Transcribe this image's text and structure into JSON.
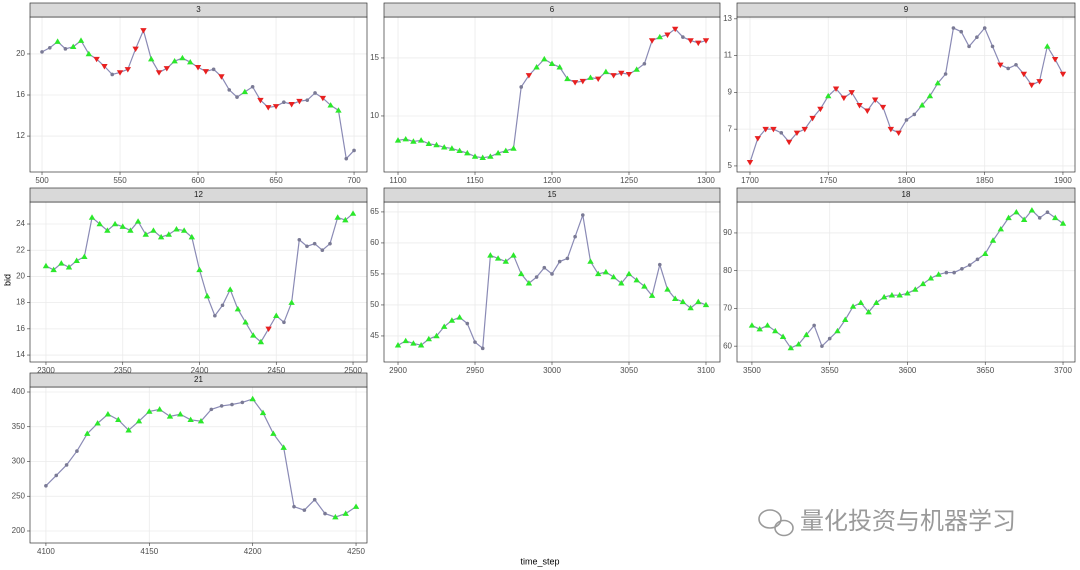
{
  "x_label": "time_step",
  "y_label": "bid",
  "watermark": "量化投资与机器学习",
  "line_color": "#8a8ab5",
  "signal_styles": {
    "u": {
      "color": "#2be82b",
      "shape": "triangle-up"
    },
    "d": {
      "color": "#e82020",
      "shape": "triangle-down"
    },
    "n": {
      "color": "#7a7a95",
      "shape": "point"
    }
  },
  "chart_data": [
    {
      "type": "line",
      "title": "3",
      "grid": true,
      "x": [
        500,
        505,
        510,
        515,
        520,
        525,
        530,
        535,
        540,
        545,
        550,
        555,
        560,
        565,
        570,
        575,
        580,
        585,
        590,
        595,
        600,
        605,
        610,
        615,
        620,
        625,
        630,
        635,
        640,
        645,
        650,
        655,
        660,
        665,
        670,
        675,
        680,
        685,
        690,
        695,
        700
      ],
      "series": [
        {
          "values": [
            20.2,
            20.6,
            21.2,
            20.5,
            20.7,
            21.3,
            20.0,
            19.5,
            18.8,
            18.0,
            18.2,
            18.5,
            20.5,
            22.3,
            19.5,
            18.2,
            18.6,
            19.3,
            19.6,
            19.2,
            18.7,
            18.3,
            18.5,
            17.8,
            16.5,
            15.8,
            16.3,
            16.8,
            15.5,
            14.8,
            14.9,
            15.3,
            15.1,
            15.4,
            15.5,
            16.2,
            15.7,
            15.0,
            14.5,
            9.8,
            10.6
          ]
        }
      ],
      "signals": [
        "n",
        "n",
        "u",
        "n",
        "u",
        "u",
        "u",
        "d",
        "d",
        "n",
        "d",
        "d",
        "d",
        "d",
        "u",
        "d",
        "d",
        "u",
        "u",
        "u",
        "d",
        "d",
        "n",
        "d",
        "n",
        "n",
        "u",
        "n",
        "d",
        "d",
        "d",
        "n",
        "d",
        "d",
        "n",
        "n",
        "d",
        "u",
        "u",
        "n",
        "n"
      ],
      "xlim": [
        492.3,
        708.3
      ],
      "xticks": [
        500,
        550,
        600,
        650,
        700
      ],
      "ylim": [
        8.5,
        23.6
      ],
      "yticks": [
        12,
        16,
        20
      ]
    },
    {
      "type": "line",
      "title": "6",
      "grid": true,
      "x": [
        1100,
        1105,
        1110,
        1115,
        1120,
        1125,
        1130,
        1135,
        1140,
        1145,
        1150,
        1155,
        1160,
        1165,
        1170,
        1175,
        1180,
        1185,
        1190,
        1195,
        1200,
        1205,
        1210,
        1215,
        1220,
        1225,
        1230,
        1235,
        1240,
        1245,
        1250,
        1255,
        1260,
        1265,
        1270,
        1275,
        1280,
        1285,
        1290,
        1295,
        1300
      ],
      "series": [
        {
          "values": [
            7.9,
            8.0,
            7.8,
            7.9,
            7.6,
            7.5,
            7.3,
            7.2,
            7.0,
            6.8,
            6.5,
            6.4,
            6.5,
            6.8,
            7.0,
            7.2,
            12.5,
            13.5,
            14.2,
            14.9,
            14.5,
            14.2,
            13.2,
            12.9,
            13.0,
            13.3,
            13.2,
            13.8,
            13.5,
            13.7,
            13.6,
            14.0,
            14.5,
            16.5,
            16.8,
            17.0,
            17.5,
            16.8,
            16.5,
            16.3,
            16.5
          ]
        }
      ],
      "signals": [
        "u",
        "u",
        "u",
        "u",
        "u",
        "u",
        "u",
        "u",
        "u",
        "u",
        "u",
        "u",
        "u",
        "u",
        "u",
        "u",
        "n",
        "d",
        "u",
        "u",
        "u",
        "u",
        "u",
        "d",
        "d",
        "u",
        "d",
        "u",
        "d",
        "d",
        "d",
        "u",
        "n",
        "d",
        "u",
        "d",
        "d",
        "n",
        "d",
        "d",
        "d"
      ],
      "xlim": [
        1090.9,
        1309.1
      ],
      "xticks": [
        1100,
        1150,
        1200,
        1250,
        1300
      ],
      "ylim": [
        5.17,
        18.53
      ],
      "yticks": [
        10,
        15
      ]
    },
    {
      "type": "line",
      "title": "9",
      "grid": true,
      "x": [
        1700,
        1705,
        1710,
        1715,
        1720,
        1725,
        1730,
        1735,
        1740,
        1745,
        1750,
        1755,
        1760,
        1765,
        1770,
        1775,
        1780,
        1785,
        1790,
        1795,
        1800,
        1805,
        1810,
        1815,
        1820,
        1825,
        1830,
        1835,
        1840,
        1845,
        1850,
        1855,
        1860,
        1865,
        1870,
        1875,
        1880,
        1885,
        1890,
        1895,
        1900
      ],
      "series": [
        {
          "values": [
            5.2,
            6.5,
            7.0,
            7.0,
            6.8,
            6.3,
            6.8,
            7.0,
            7.6,
            8.1,
            8.8,
            9.2,
            8.7,
            9.0,
            8.3,
            8.0,
            8.6,
            8.2,
            7.0,
            6.8,
            7.5,
            7.8,
            8.3,
            8.8,
            9.5,
            10.0,
            12.5,
            12.3,
            11.5,
            12.0,
            12.5,
            11.5,
            10.5,
            10.3,
            10.5,
            10.0,
            9.4,
            9.6,
            11.5,
            10.8,
            10.0
          ]
        }
      ],
      "signals": [
        "d",
        "d",
        "d",
        "d",
        "n",
        "d",
        "d",
        "d",
        "d",
        "d",
        "u",
        "d",
        "d",
        "d",
        "d",
        "d",
        "d",
        "d",
        "d",
        "d",
        "n",
        "n",
        "u",
        "u",
        "u",
        "n",
        "n",
        "n",
        "n",
        "n",
        "n",
        "n",
        "d",
        "n",
        "n",
        "d",
        "d",
        "d",
        "u",
        "d",
        "d"
      ],
      "xlim": [
        1691.7,
        1907.7
      ],
      "xticks": [
        1700,
        1750,
        1800,
        1850,
        1900
      ],
      "ylim": [
        4.67,
        13.1
      ],
      "yticks": [
        5,
        7,
        9,
        11,
        13
      ]
    },
    {
      "type": "line",
      "title": "12",
      "grid": true,
      "x": [
        2300,
        2305,
        2310,
        2315,
        2320,
        2325,
        2330,
        2335,
        2340,
        2345,
        2350,
        2355,
        2360,
        2365,
        2370,
        2375,
        2380,
        2385,
        2390,
        2395,
        2400,
        2405,
        2410,
        2415,
        2420,
        2425,
        2430,
        2435,
        2440,
        2445,
        2450,
        2455,
        2460,
        2465,
        2470,
        2475,
        2480,
        2485,
        2490,
        2495,
        2500
      ],
      "series": [
        {
          "values": [
            20.8,
            20.5,
            21.0,
            20.7,
            21.2,
            21.5,
            24.5,
            24.0,
            23.5,
            24.0,
            23.8,
            23.5,
            24.2,
            23.2,
            23.5,
            23.0,
            23.2,
            23.6,
            23.5,
            23.0,
            20.5,
            18.5,
            17.0,
            17.8,
            19.0,
            17.5,
            16.5,
            15.5,
            15.0,
            16.0,
            17.0,
            16.5,
            18.0,
            22.8,
            22.3,
            22.5,
            22.0,
            22.5,
            24.5,
            24.3,
            24.8
          ]
        }
      ],
      "signals": [
        "u",
        "u",
        "u",
        "u",
        "u",
        "u",
        "u",
        "u",
        "u",
        "u",
        "u",
        "u",
        "u",
        "u",
        "u",
        "u",
        "u",
        "u",
        "u",
        "u",
        "u",
        "u",
        "n",
        "n",
        "u",
        "u",
        "u",
        "u",
        "u",
        "d",
        "u",
        "n",
        "u",
        "n",
        "n",
        "n",
        "n",
        "n",
        "u",
        "u",
        "u"
      ],
      "xlim": [
        2289.6,
        2509.1
      ],
      "xticks": [
        2300,
        2350,
        2400,
        2450,
        2500
      ],
      "ylim": [
        13.47,
        25.68
      ],
      "yticks": [
        14,
        16,
        18,
        20,
        22,
        24
      ]
    },
    {
      "type": "line",
      "title": "15",
      "grid": true,
      "x": [
        2900,
        2905,
        2910,
        2915,
        2920,
        2925,
        2930,
        2935,
        2940,
        2945,
        2950,
        2955,
        2960,
        2965,
        2970,
        2975,
        2980,
        2985,
        2990,
        2995,
        3000,
        3005,
        3010,
        3015,
        3020,
        3025,
        3030,
        3035,
        3040,
        3045,
        3050,
        3055,
        3060,
        3065,
        3070,
        3075,
        3080,
        3085,
        3090,
        3095,
        3100
      ],
      "series": [
        {
          "values": [
            43.5,
            44.2,
            43.8,
            43.5,
            44.5,
            45.0,
            46.5,
            47.5,
            48.0,
            47.0,
            44.0,
            43.0,
            58.0,
            57.5,
            57.0,
            58.0,
            55.0,
            53.5,
            54.5,
            56.0,
            55.0,
            57.0,
            57.5,
            61.0,
            64.5,
            57.0,
            55.0,
            55.3,
            54.5,
            53.5,
            55.0,
            54.0,
            53.0,
            51.5,
            56.5,
            52.5,
            51.0,
            50.5,
            49.5,
            50.5,
            50.0
          ]
        }
      ],
      "signals": [
        "u",
        "u",
        "u",
        "u",
        "u",
        "u",
        "u",
        "u",
        "u",
        "n",
        "n",
        "n",
        "u",
        "u",
        "u",
        "u",
        "u",
        "u",
        "n",
        "n",
        "n",
        "n",
        "n",
        "n",
        "n",
        "u",
        "u",
        "u",
        "u",
        "u",
        "u",
        "u",
        "u",
        "u",
        "n",
        "u",
        "u",
        "u",
        "u",
        "u",
        "u"
      ],
      "xlim": [
        2890.9,
        3109.1
      ],
      "xticks": [
        2900,
        2950,
        3000,
        3050,
        3100
      ],
      "ylim": [
        40.8,
        66.6
      ],
      "yticks": [
        45,
        50,
        55,
        60,
        65
      ]
    },
    {
      "type": "line",
      "title": "18",
      "grid": true,
      "x": [
        3500,
        3505,
        3510,
        3515,
        3520,
        3525,
        3530,
        3535,
        3540,
        3545,
        3550,
        3555,
        3560,
        3565,
        3570,
        3575,
        3580,
        3585,
        3590,
        3595,
        3600,
        3605,
        3610,
        3615,
        3620,
        3625,
        3630,
        3635,
        3640,
        3645,
        3650,
        3655,
        3660,
        3665,
        3670,
        3675,
        3680,
        3685,
        3690,
        3695,
        3700
      ],
      "series": [
        {
          "values": [
            65.5,
            64.5,
            65.5,
            64.0,
            62.5,
            59.5,
            60.5,
            63.0,
            65.5,
            60.0,
            62.0,
            64.0,
            67.0,
            70.5,
            71.5,
            69.0,
            71.5,
            73.0,
            73.5,
            73.5,
            74.0,
            75.0,
            76.5,
            78.0,
            79.0,
            79.5,
            79.5,
            80.5,
            81.5,
            83.0,
            84.5,
            88.0,
            91.0,
            94.0,
            95.5,
            93.5,
            96.0,
            94.0,
            95.5,
            94.0,
            92.5
          ]
        }
      ],
      "signals": [
        "u",
        "u",
        "u",
        "u",
        "u",
        "u",
        "u",
        "u",
        "n",
        "n",
        "n",
        "u",
        "u",
        "u",
        "u",
        "u",
        "u",
        "u",
        "u",
        "u",
        "u",
        "u",
        "u",
        "u",
        "u",
        "n",
        "n",
        "n",
        "n",
        "n",
        "u",
        "u",
        "u",
        "u",
        "u",
        "u",
        "u",
        "n",
        "n",
        "u",
        "u"
      ],
      "xlim": [
        3490.4,
        3707.7
      ],
      "xticks": [
        3500,
        3550,
        3600,
        3650,
        3700
      ],
      "ylim": [
        55.8,
        98.2
      ],
      "yticks": [
        60,
        70,
        80,
        90
      ]
    },
    {
      "type": "line",
      "title": "21",
      "grid": true,
      "x": [
        4100,
        4105,
        4110,
        4115,
        4120,
        4125,
        4130,
        4135,
        4140,
        4145,
        4150,
        4155,
        4160,
        4165,
        4170,
        4175,
        4180,
        4185,
        4190,
        4195,
        4200,
        4205,
        4210,
        4215,
        4220,
        4225,
        4230,
        4235,
        4240,
        4245,
        4250
      ],
      "series": [
        {
          "values": [
            265,
            280,
            295,
            315,
            340,
            355,
            368,
            360,
            345,
            358,
            372,
            375,
            365,
            368,
            360,
            358,
            375,
            380,
            382,
            385,
            390,
            370,
            340,
            320,
            235,
            230,
            245,
            225,
            220,
            225,
            235
          ]
        }
      ],
      "signals": [
        "n",
        "n",
        "n",
        "n",
        "u",
        "u",
        "u",
        "u",
        "u",
        "u",
        "u",
        "u",
        "u",
        "u",
        "u",
        "u",
        "n",
        "n",
        "n",
        "n",
        "u",
        "u",
        "u",
        "u",
        "n",
        "n",
        "n",
        "n",
        "u",
        "u",
        "u"
      ],
      "xlim": [
        4092.3,
        4255.3
      ],
      "xticks": [
        4100,
        4150,
        4200,
        4250
      ],
      "ylim": [
        182.7,
        407.2
      ],
      "yticks": [
        200,
        250,
        300,
        350,
        400
      ]
    }
  ]
}
